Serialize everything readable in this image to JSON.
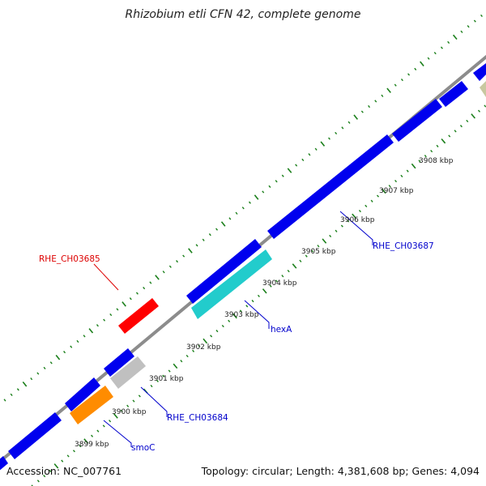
{
  "title": "Rhizobium etli CFN 42, complete genome",
  "accession_label": "Accession: NC_007761",
  "summary_label": "Topology: circular; Length: 4,381,608 bp; Genes: 4,094",
  "colors": {
    "backbone": "#8c8c8c",
    "tick": "#1a7f1a",
    "gene_default": "#0000ee",
    "gene_red": "#ff0000",
    "gene_cyan": "#22cccc",
    "gene_gray": "#c0c0c0",
    "gene_orange": "#ff8c00",
    "gene_olive": "#c8c8a0",
    "label_red": "#dd0000",
    "label_blue": "#0000cc"
  },
  "scale_labels": [
    "3899 kbp",
    "3900 kbp",
    "3901 kbp",
    "3902 kbp",
    "3903 kbp",
    "3904 kbp",
    "3905 kbp",
    "3906 kbp",
    "3907 kbp",
    "3908 kbp"
  ],
  "gene_labels": [
    {
      "name": "RHE_CH03685",
      "color": "label_red"
    },
    {
      "name": "RHE_CH03684",
      "color": "label_blue"
    },
    {
      "name": "smoC",
      "color": "label_blue"
    },
    {
      "name": "hexA",
      "color": "label_blue"
    },
    {
      "name": "RHE_CH03687",
      "color": "label_blue"
    }
  ]
}
